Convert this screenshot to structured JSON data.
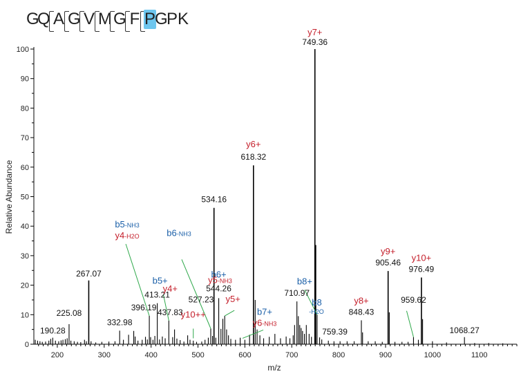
{
  "peptide": {
    "residues": [
      "G",
      "Q",
      "A",
      "G",
      "V",
      "M",
      "G",
      "F",
      "P",
      "G",
      "P",
      "K"
    ],
    "highlighted_residue": "P",
    "highlight_color": "#6ec6ee"
  },
  "chart_data": {
    "type": "bar",
    "xlabel": "m/z",
    "ylabel": "Relative Abundance",
    "xlim": [
      150,
      1180
    ],
    "ylim": [
      0,
      100
    ],
    "x_ticks": [
      200,
      300,
      400,
      500,
      600,
      700,
      800,
      900,
      1000,
      1100
    ],
    "y_ticks": [
      0,
      10,
      20,
      30,
      40,
      50,
      60,
      70,
      80,
      90,
      100
    ],
    "colors": {
      "b_ion": "#1a5fa8",
      "y_ion": "#c41e2a",
      "leader": "#2ea84a",
      "peak": "#000000"
    },
    "peaks": [
      {
        "x": 153,
        "y": 1.5
      },
      {
        "x": 158,
        "y": 1.2
      },
      {
        "x": 163,
        "y": 1.0
      },
      {
        "x": 168,
        "y": 0.8
      },
      {
        "x": 175,
        "y": 0.9
      },
      {
        "x": 182,
        "y": 1.2
      },
      {
        "x": 186,
        "y": 1.8
      },
      {
        "x": 190.28,
        "y": 2.2
      },
      {
        "x": 196,
        "y": 1.2
      },
      {
        "x": 203,
        "y": 1.0
      },
      {
        "x": 208,
        "y": 1.3
      },
      {
        "x": 212,
        "y": 1.5
      },
      {
        "x": 217,
        "y": 1.7
      },
      {
        "x": 221,
        "y": 2.0
      },
      {
        "x": 225.08,
        "y": 6.8
      },
      {
        "x": 229,
        "y": 1.2
      },
      {
        "x": 236,
        "y": 1.0
      },
      {
        "x": 243,
        "y": 0.8
      },
      {
        "x": 250,
        "y": 0.7
      },
      {
        "x": 258,
        "y": 1.5
      },
      {
        "x": 262,
        "y": 1.0
      },
      {
        "x": 267.07,
        "y": 21.6
      },
      {
        "x": 272,
        "y": 1.0
      },
      {
        "x": 282,
        "y": 0.6
      },
      {
        "x": 295,
        "y": 0.8
      },
      {
        "x": 310,
        "y": 0.9
      },
      {
        "x": 323,
        "y": 1.0
      },
      {
        "x": 332.98,
        "y": 4.6
      },
      {
        "x": 341,
        "y": 1.5
      },
      {
        "x": 352,
        "y": 3.2
      },
      {
        "x": 363,
        "y": 4.5
      },
      {
        "x": 366,
        "y": 2.6
      },
      {
        "x": 372,
        "y": 1.2
      },
      {
        "x": 381,
        "y": 1.5
      },
      {
        "x": 388,
        "y": 2.5
      },
      {
        "x": 392,
        "y": 1.6
      },
      {
        "x": 396.19,
        "y": 9.6
      },
      {
        "x": 399,
        "y": 2.4
      },
      {
        "x": 404,
        "y": 1.5
      },
      {
        "x": 408,
        "y": 2.8
      },
      {
        "x": 413.21,
        "y": 13.9
      },
      {
        "x": 418,
        "y": 1.6
      },
      {
        "x": 424,
        "y": 2.6
      },
      {
        "x": 430,
        "y": 2.0
      },
      {
        "x": 437.83,
        "y": 8.0
      },
      {
        "x": 446,
        "y": 2.4
      },
      {
        "x": 450,
        "y": 5.0
      },
      {
        "x": 455,
        "y": 1.9
      },
      {
        "x": 462,
        "y": 1.4
      },
      {
        "x": 470,
        "y": 0.9
      },
      {
        "x": 478,
        "y": 3.0
      },
      {
        "x": 483,
        "y": 1.5
      },
      {
        "x": 490,
        "y": 1.2
      },
      {
        "x": 497,
        "y": 0.8
      },
      {
        "x": 508,
        "y": 0.9
      },
      {
        "x": 515,
        "y": 1.5
      },
      {
        "x": 522,
        "y": 2.2
      },
      {
        "x": 527.23,
        "y": 5.3
      },
      {
        "x": 531,
        "y": 2.8
      },
      {
        "x": 534.16,
        "y": 46.2
      },
      {
        "x": 538,
        "y": 2.2
      },
      {
        "x": 544.26,
        "y": 15.6
      },
      {
        "x": 549,
        "y": 5.2
      },
      {
        "x": 553,
        "y": 8.6
      },
      {
        "x": 557,
        "y": 9.6
      },
      {
        "x": 561,
        "y": 5.0
      },
      {
        "x": 565,
        "y": 3.0
      },
      {
        "x": 570,
        "y": 1.8
      },
      {
        "x": 580,
        "y": 1.5
      },
      {
        "x": 590,
        "y": 2.2
      },
      {
        "x": 600,
        "y": 1.5
      },
      {
        "x": 610,
        "y": 3.2
      },
      {
        "x": 618.32,
        "y": 60.6
      },
      {
        "x": 622,
        "y": 15.0
      },
      {
        "x": 626,
        "y": 5.0
      },
      {
        "x": 632,
        "y": 3.0
      },
      {
        "x": 640,
        "y": 2.0
      },
      {
        "x": 652,
        "y": 2.5
      },
      {
        "x": 664,
        "y": 3.5
      },
      {
        "x": 676,
        "y": 2.0
      },
      {
        "x": 688,
        "y": 2.6
      },
      {
        "x": 696,
        "y": 2.0
      },
      {
        "x": 703,
        "y": 3.0
      },
      {
        "x": 706,
        "y": 6.5
      },
      {
        "x": 710.97,
        "y": 14.5
      },
      {
        "x": 714,
        "y": 9.5
      },
      {
        "x": 717,
        "y": 6.5
      },
      {
        "x": 720,
        "y": 5.5
      },
      {
        "x": 723,
        "y": 4.5
      },
      {
        "x": 727,
        "y": 3.5
      },
      {
        "x": 731,
        "y": 6.5
      },
      {
        "x": 737,
        "y": 3.5
      },
      {
        "x": 742,
        "y": 2.5
      },
      {
        "x": 749.36,
        "y": 100.0
      },
      {
        "x": 751,
        "y": 33.6
      },
      {
        "x": 754,
        "y": 10.0
      },
      {
        "x": 759.39,
        "y": 2.3
      },
      {
        "x": 764,
        "y": 1.6
      },
      {
        "x": 778,
        "y": 1.2
      },
      {
        "x": 790,
        "y": 1.0
      },
      {
        "x": 803,
        "y": 1.0
      },
      {
        "x": 818,
        "y": 1.0
      },
      {
        "x": 833,
        "y": 1.0
      },
      {
        "x": 848.43,
        "y": 8.1
      },
      {
        "x": 851,
        "y": 4.0
      },
      {
        "x": 863,
        "y": 1.0
      },
      {
        "x": 878,
        "y": 1.0
      },
      {
        "x": 893,
        "y": 0.8
      },
      {
        "x": 905.46,
        "y": 24.8
      },
      {
        "x": 908,
        "y": 10.8
      },
      {
        "x": 920,
        "y": 0.8
      },
      {
        "x": 935,
        "y": 0.8
      },
      {
        "x": 948,
        "y": 0.8
      },
      {
        "x": 959.62,
        "y": 2.4
      },
      {
        "x": 970,
        "y": 1.5
      },
      {
        "x": 976.49,
        "y": 22.6
      },
      {
        "x": 979,
        "y": 8.5
      },
      {
        "x": 1000,
        "y": 1.0
      },
      {
        "x": 1030,
        "y": 0.6
      },
      {
        "x": 1068.27,
        "y": 2.4
      },
      {
        "x": 1090,
        "y": 0.4
      },
      {
        "x": 1120,
        "y": 0.4
      },
      {
        "x": 1150,
        "y": 0.3
      }
    ],
    "annotations": [
      {
        "mz": "190.28",
        "peak_x": 190.28,
        "peak_y": 2.2
      },
      {
        "mz": "225.08",
        "peak_x": 225.08,
        "peak_y": 6.8
      },
      {
        "mz": "267.07",
        "peak_x": 267.07,
        "peak_y": 21.6
      },
      {
        "mz": "332.98",
        "peak_x": 332.98,
        "peak_y": 4.6
      },
      {
        "mz": "396.19",
        "peak_x": 396.19,
        "peak_y": 9.6,
        "ion": "b5",
        "ion_sub": "-NH3",
        "ion_color": "b",
        "ion2": "y4",
        "ion2_sub": "-H2O",
        "ion2_color": "y"
      },
      {
        "mz": "413.21",
        "peak_x": 413.21,
        "peak_y": 13.9,
        "ion": "b5+",
        "ion_color": "b"
      },
      {
        "mz": "437.83",
        "peak_x": 437.83,
        "peak_y": 8.0,
        "ion": "y4+",
        "ion_color": "y"
      },
      {
        "mz": "527.23",
        "peak_x": 527.23,
        "peak_y": 5.3,
        "ion": "b6",
        "ion_sub": "-NH3",
        "ion_color": "b"
      },
      {
        "mz": "534.16",
        "peak_x": 534.16,
        "peak_y": 46.2
      },
      {
        "mz": "544.26",
        "peak_x": 544.26,
        "peak_y": 15.6,
        "ion": "b6+",
        "ion_color": "b",
        "ion2": "y5",
        "ion2_sub": "-NH3",
        "ion2_color": "y"
      },
      {
        "mz": "618.32",
        "peak_x": 618.32,
        "peak_y": 60.6,
        "ion": "y6+",
        "ion_color": "y"
      },
      {
        "mz": "710.97",
        "peak_x": 710.97,
        "peak_y": 14.5
      },
      {
        "mz": "749.36",
        "peak_x": 749.36,
        "peak_y": 100.0,
        "ion": "y7+",
        "ion_color": "y"
      },
      {
        "mz": "759.39",
        "peak_x": 759.39,
        "peak_y": 2.3
      },
      {
        "mz": "848.43",
        "peak_x": 848.43,
        "peak_y": 8.1,
        "ion": "y8+",
        "ion_color": "y"
      },
      {
        "mz": "905.46",
        "peak_x": 905.46,
        "peak_y": 24.8,
        "ion": "y9+",
        "ion_color": "y"
      },
      {
        "mz": "959.62",
        "peak_x": 959.62,
        "peak_y": 2.4
      },
      {
        "mz": "976.49",
        "peak_x": 976.49,
        "peak_y": 22.6,
        "ion": "y10+",
        "ion_color": "y"
      },
      {
        "mz": "1068.27",
        "peak_x": 1068.27,
        "peak_y": 2.4
      }
    ],
    "floating_labels": [
      {
        "ion": "y10++",
        "color": "y",
        "peak_x": 490,
        "peak_y": 2.0
      },
      {
        "ion": "y5+",
        "color": "y",
        "peak_x": 557,
        "peak_y": 9.6
      },
      {
        "ion": "b7+",
        "color": "b",
        "peak_x": 595,
        "peak_y": 2.0
      },
      {
        "ion": "y6",
        "sub": "-NH3",
        "color": "y",
        "peak_x": 595,
        "peak_y": 2.0
      },
      {
        "ion": "b8+",
        "color": "b",
        "peak_x": 754,
        "peak_y": 10.0
      },
      {
        "ion": "b8",
        "sub": "-H2O",
        "color": "b",
        "peak_x": 731,
        "peak_y": 6.5
      }
    ]
  }
}
